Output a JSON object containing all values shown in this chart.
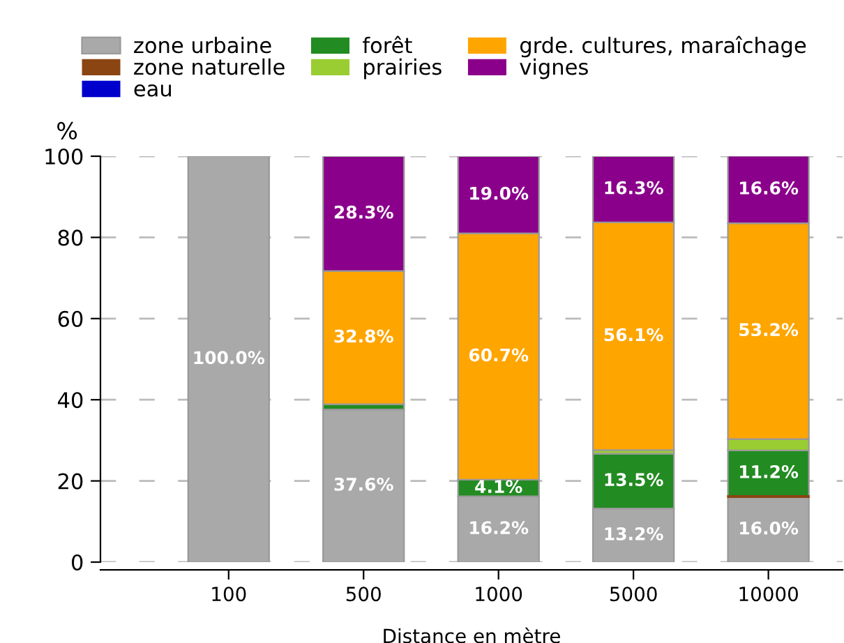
{
  "chart_data": {
    "type": "bar",
    "stacked": true,
    "xlabel": "Distance en mètre",
    "ylabel": "%",
    "categories": [
      "100",
      "500",
      "1000",
      "5000",
      "10000"
    ],
    "series": [
      {
        "name": "zone urbaine",
        "color": "#a9a9a9",
        "values": [
          100.0,
          37.6,
          16.2,
          13.2,
          16.0
        ],
        "value_labels": [
          "100.0%",
          "37.6%",
          "16.2%",
          "13.2%",
          "16.0%"
        ]
      },
      {
        "name": "zone naturelle",
        "color": "#8b4513",
        "values": [
          0,
          0,
          0,
          0,
          0.3
        ]
      },
      {
        "name": "eau",
        "color": "#0000cd",
        "values": [
          0,
          0,
          0,
          0,
          0
        ]
      },
      {
        "name": "forêt",
        "color": "#228b22",
        "values": [
          0,
          1.3,
          4.1,
          13.5,
          11.2
        ],
        "value_labels": [
          null,
          null,
          "4.1%",
          "13.5%",
          "11.2%"
        ]
      },
      {
        "name": "prairies",
        "color": "#9acd32",
        "values": [
          0,
          0,
          0,
          0.9,
          2.8
        ]
      },
      {
        "name": "grde. cultures, maraîchage",
        "color": "#ffa500",
        "values": [
          0,
          32.8,
          60.7,
          56.1,
          53.2
        ],
        "value_labels": [
          null,
          "32.8%",
          "60.7%",
          "56.1%",
          "53.2%"
        ]
      },
      {
        "name": "vignes",
        "color": "#8b008b",
        "values": [
          0,
          28.3,
          19.0,
          16.3,
          16.6
        ],
        "value_labels": [
          null,
          "28.3%",
          "19.0%",
          "16.3%",
          "16.6%"
        ]
      }
    ],
    "ylim": [
      0,
      100
    ],
    "yticks": [
      0,
      20,
      40,
      60,
      80,
      100
    ],
    "grid": "y",
    "legend": "top"
  }
}
